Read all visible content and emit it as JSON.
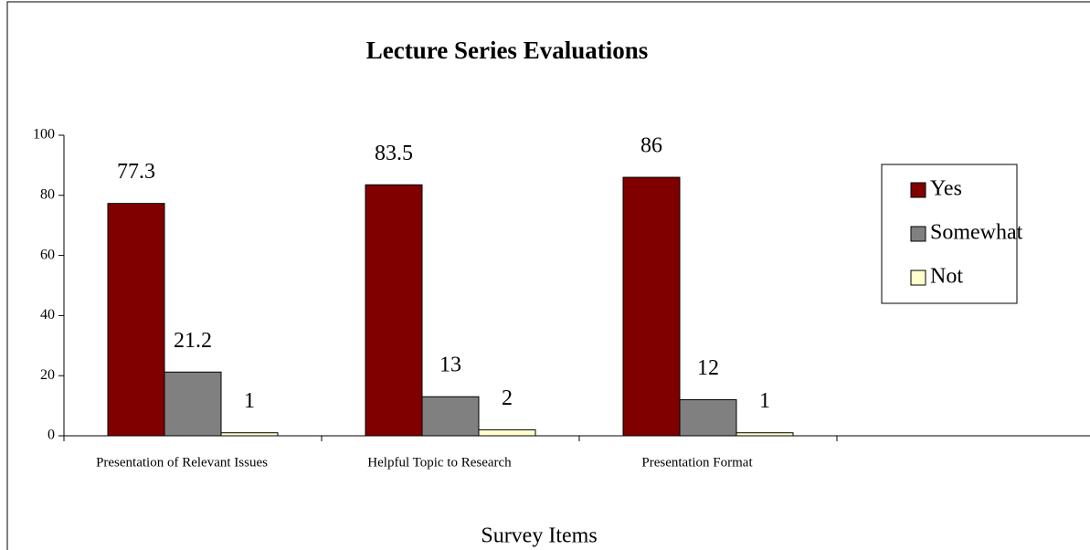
{
  "chart_data": {
    "type": "bar",
    "title": "Lecture Series Evaluations",
    "x_label": "Survey Items",
    "categories": [
      "Presentation of Relevant Issues",
      "Helpful Topic to Research",
      "Presentation Format",
      null
    ],
    "series": [
      {
        "name": "Yes",
        "color": "#800000",
        "values": [
          77.3,
          83.5,
          86,
          null
        ]
      },
      {
        "name": "Somewhat",
        "color": "#808080",
        "values": [
          21.2,
          13,
          12,
          null
        ]
      },
      {
        "name": "Not",
        "color": "#ffffcc",
        "values": [
          1,
          2,
          1,
          null
        ]
      }
    ],
    "ylim": [
      0,
      100
    ],
    "yticks": [
      0,
      20,
      40,
      60,
      80,
      100
    ],
    "legend": "right",
    "data_labels": true
  }
}
